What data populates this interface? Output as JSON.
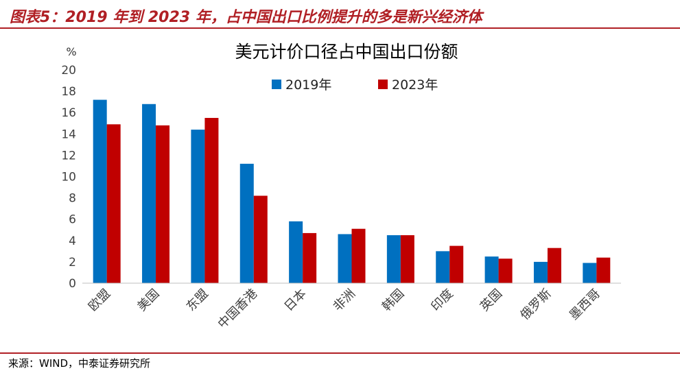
{
  "header": {
    "title": "图表5：2019 年到 2023 年，占中国出口比例提升的多是新兴经济体"
  },
  "footer": {
    "source": "来源：WIND，中泰证券研究所"
  },
  "colors": {
    "accent": "#b01f24",
    "series_2019": "#0070c0",
    "series_2023": "#c00000"
  },
  "chart_data": {
    "type": "bar",
    "title": "美元计价口径占中国出口份额",
    "ylabel": "%",
    "xlabel": "",
    "ylim": [
      0,
      20
    ],
    "yticks": [
      0,
      2,
      4,
      6,
      8,
      10,
      12,
      14,
      16,
      18,
      20
    ],
    "grid": false,
    "legend": "top",
    "categories": [
      "欧盟",
      "美国",
      "东盟",
      "中国香港",
      "日本",
      "非洲",
      "韩国",
      "印度",
      "英国",
      "俄罗斯",
      "墨西哥"
    ],
    "series": [
      {
        "name": "2019年",
        "values": [
          17.2,
          16.8,
          14.4,
          11.2,
          5.8,
          4.6,
          4.5,
          3.0,
          2.5,
          2.0,
          1.9
        ]
      },
      {
        "name": "2023年",
        "values": [
          14.9,
          14.8,
          15.5,
          8.2,
          4.7,
          5.1,
          4.5,
          3.5,
          2.3,
          3.3,
          2.4
        ]
      }
    ]
  }
}
